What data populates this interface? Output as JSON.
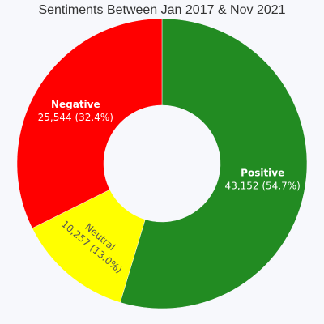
{
  "chart_data": {
    "type": "pie",
    "title": "Sentiments Between Jan 2017 & Nov 2021",
    "hole": true,
    "legend": "none",
    "slices": [
      {
        "name": "Positive",
        "value": 43152,
        "value_text": "43,152",
        "percent_text": "54.7%",
        "color": "#228b22",
        "label_color": "#ffffff"
      },
      {
        "name": "Neutral",
        "value": 10257,
        "value_text": "10,257",
        "percent_text": "13.0%",
        "color": "#ffff00",
        "label_color": "#555555"
      },
      {
        "name": "Negative",
        "value": 25544,
        "value_text": "25,544",
        "percent_text": "32.4%",
        "color": "#ff0000",
        "label_color": "#ffffff"
      }
    ]
  }
}
